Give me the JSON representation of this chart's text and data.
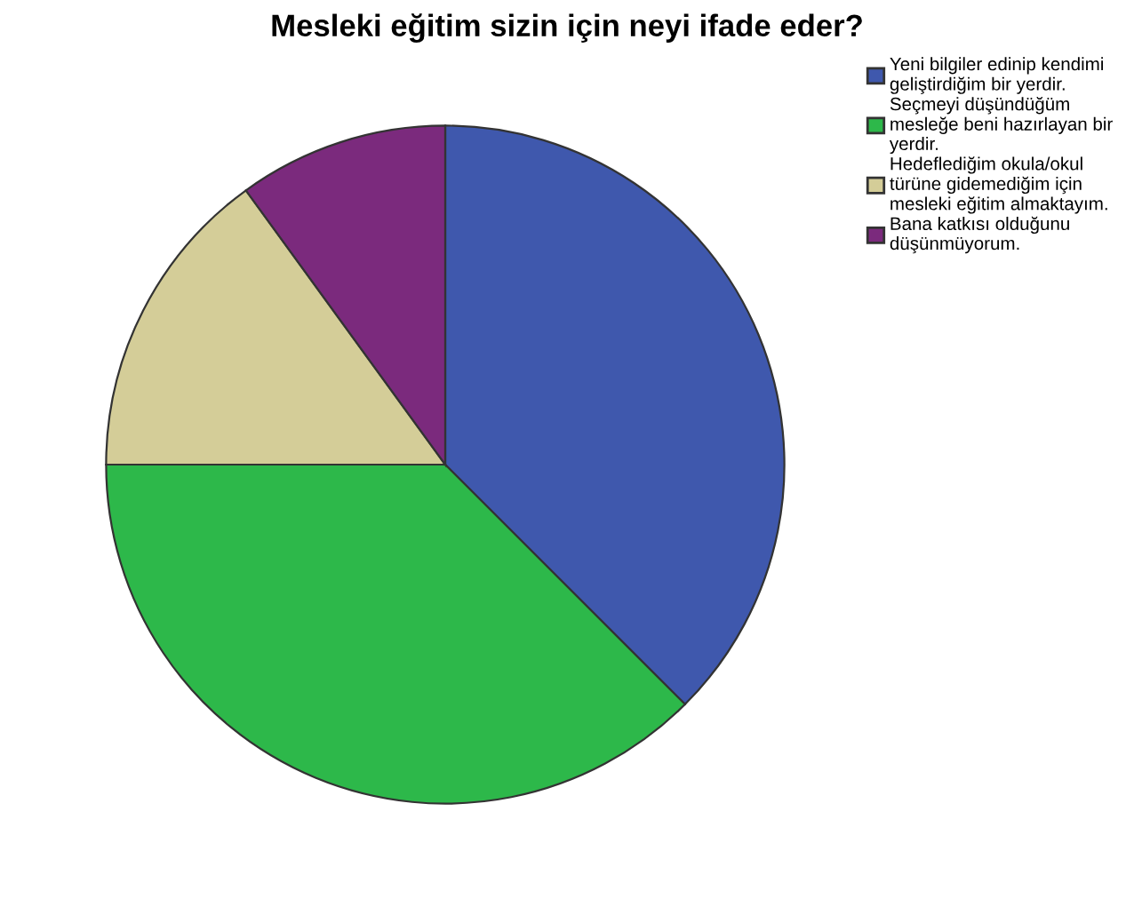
{
  "chart_data": {
    "type": "pie",
    "title": "Mesleki eğitim sizin için neyi ifade eder?",
    "categories": [
      "Yeni bilgiler edinip kendimi\ngeliştirdiğim bir yerdir.",
      "Seçmeyi düşündüğüm\nmesleğe beni hazırlayan bir\nyerdir.",
      "Hedeflediğim okula/okul\ntürüne gidemediğim için\nmesleki eğitim almaktayım.",
      "Bana katkısı olduğunu\ndüşünmüyorum."
    ],
    "values": [
      37.5,
      37.5,
      15,
      10
    ],
    "colors": [
      "#3f58ad",
      "#2db84a",
      "#d4cd98",
      "#7b2a7d"
    ],
    "legend": "top right"
  }
}
